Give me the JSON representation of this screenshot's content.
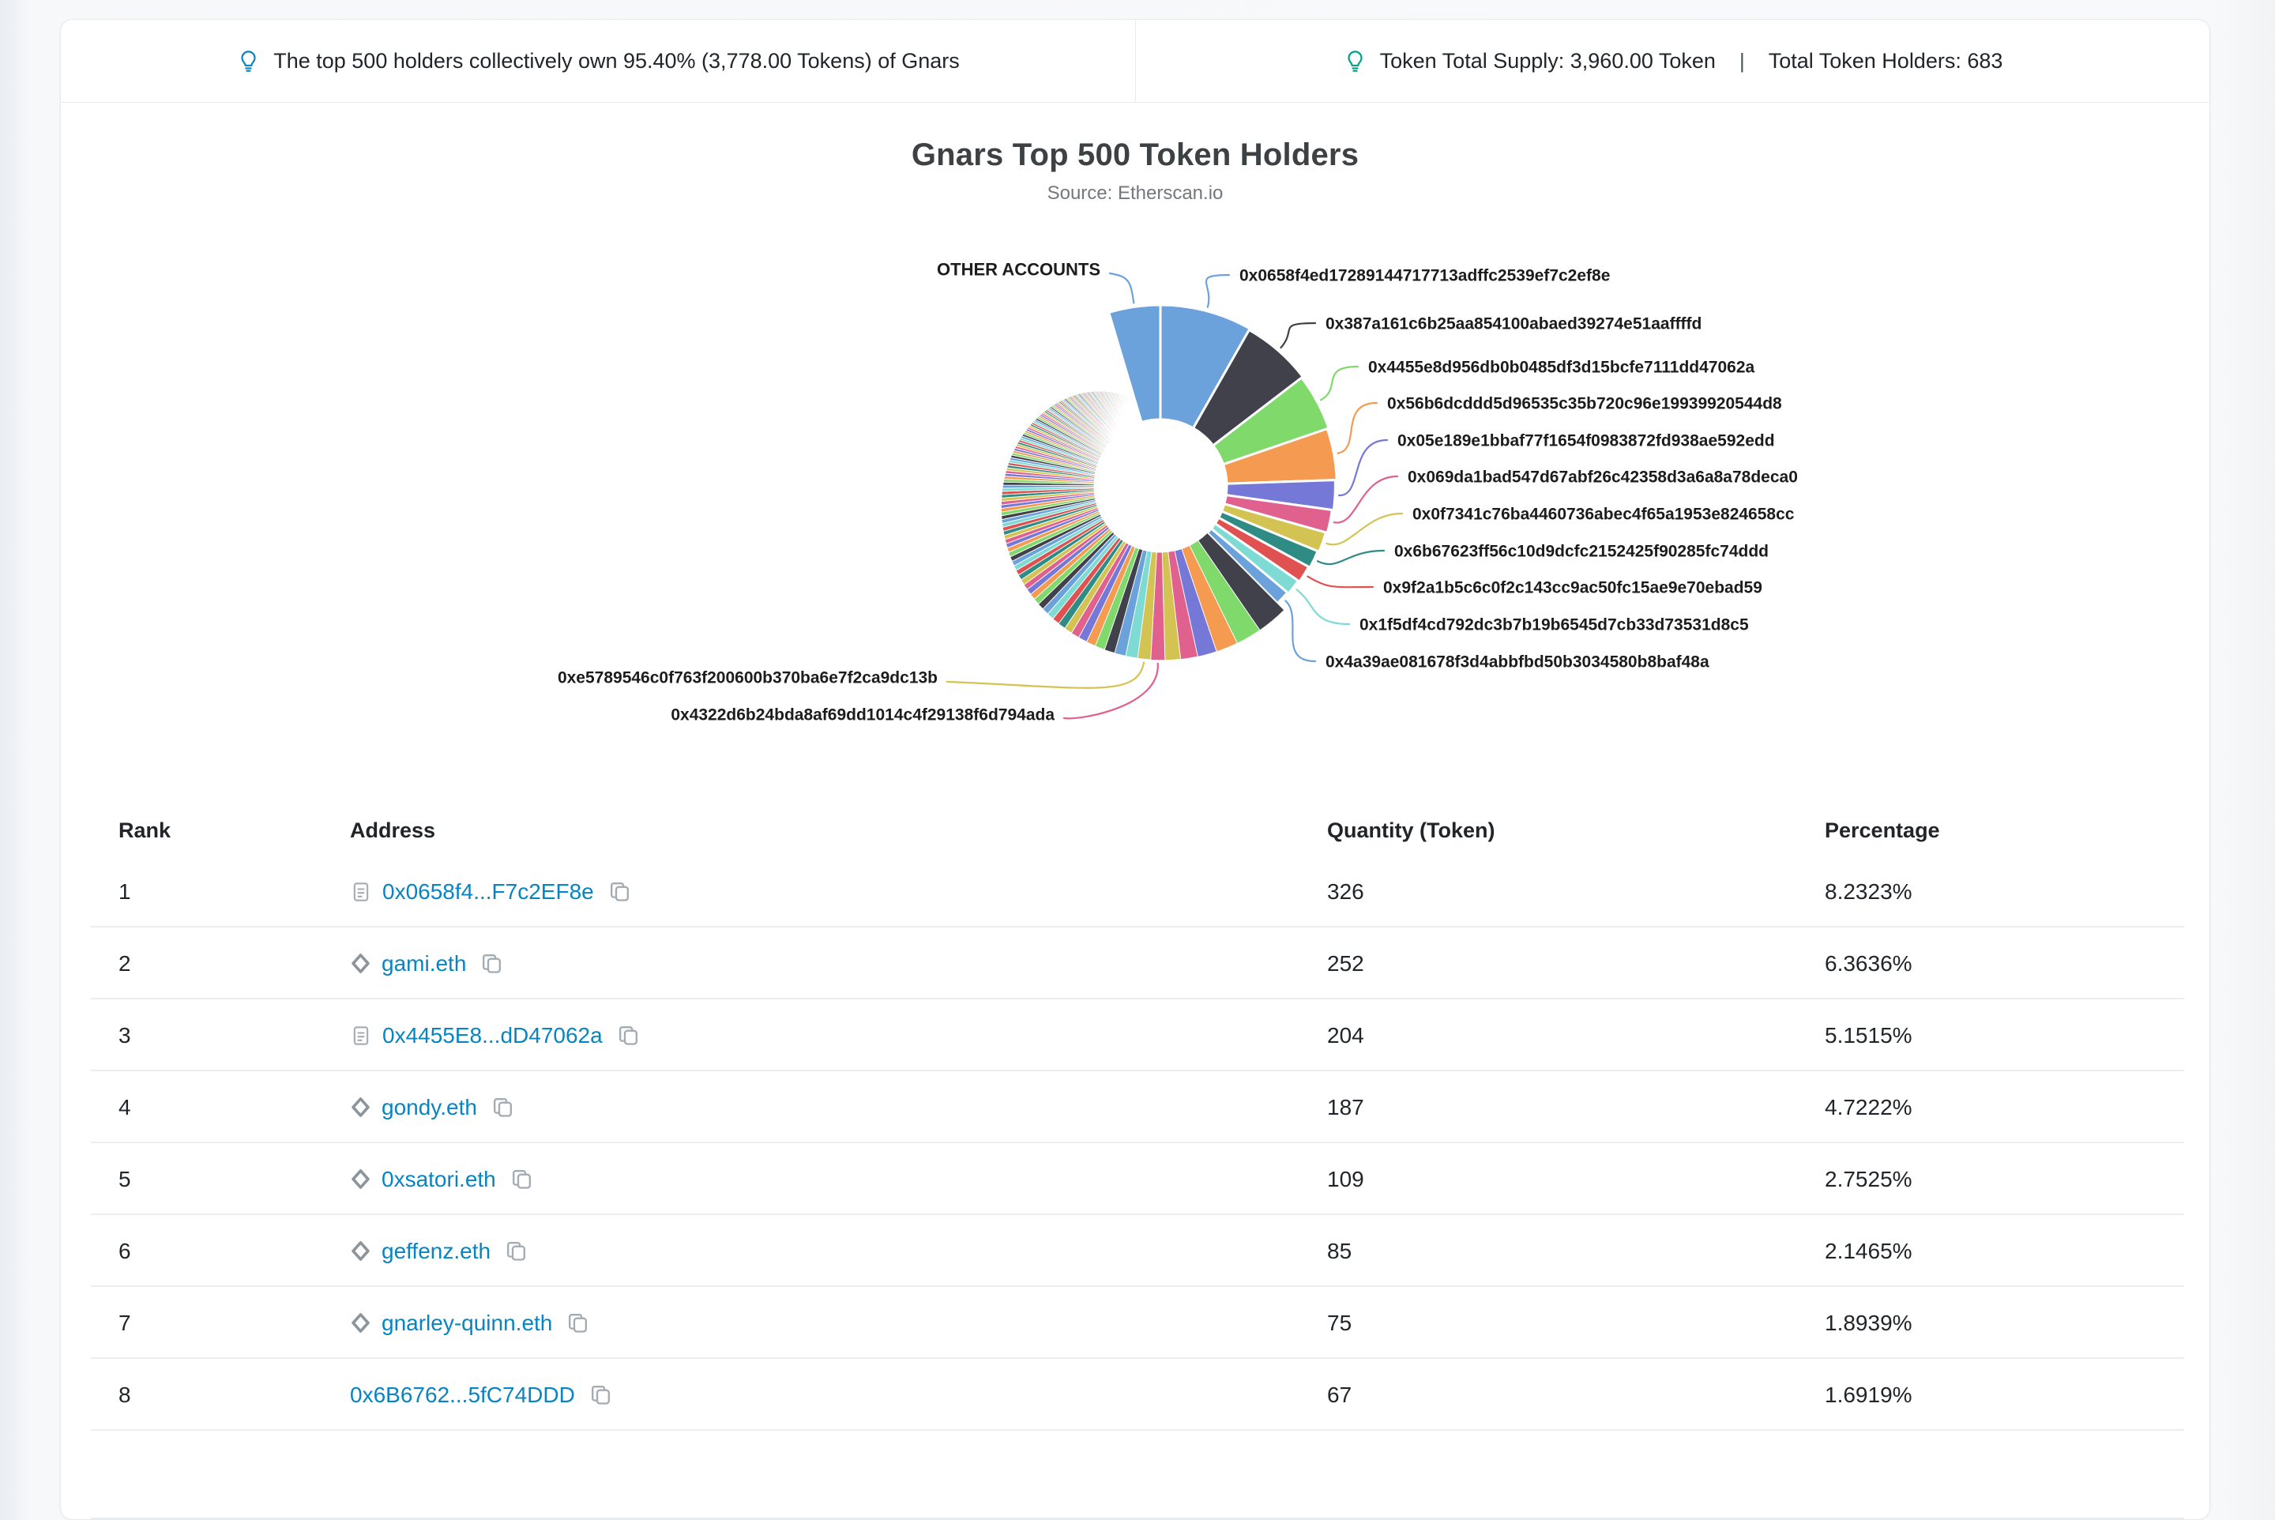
{
  "banner": {
    "left_text": "The top 500 holders collectively own 95.40% (3,778.00 Tokens) of Gnars",
    "right_supply_label": "Token Total Supply: 3,960.00 Token",
    "right_separator": "|",
    "right_holders_label": "Total Token Holders: 683"
  },
  "chart": {
    "title": "Gnars Top 500 Token Holders",
    "subtitle": "Source: Etherscan.io"
  },
  "chart_data": {
    "type": "pie",
    "title": "Gnars Top 500 Token Holders",
    "subtitle": "Source: Etherscan.io",
    "units": "percent of total token supply",
    "top_500_total_pct": 95.4,
    "top_500_total_tokens": "3,778.00",
    "total_supply_tokens": "3,960.00",
    "total_holders": 683,
    "other_accounts": {
      "label": "OTHER ACCOUNTS",
      "pct": 4.6
    },
    "labeled_slices": [
      {
        "address": "0x0658f4ed17289144717713adffc2539ef7c2ef8e",
        "pct": 8.2323
      },
      {
        "address": "0x387a161c6b25aa854100abaed39274e51aaffffd",
        "pct": 6.3636
      },
      {
        "address": "0x4455e8d956db0b0485df3d15bcfe7111dd47062a",
        "pct": 5.1515
      },
      {
        "address": "0x56b6dcddd5d96535c35b720c96e19939920544d8",
        "pct": 4.7222
      },
      {
        "address": "0x05e189e1bbaf77f1654f0983872fd938ae592edd",
        "pct": 2.7525
      },
      {
        "address": "0x069da1bad547d67abf26c42358d3a6a8a78deca0",
        "pct": 2.1465
      },
      {
        "address": "0x0f7341c76ba4460736abec4f65a1953e824658cc",
        "pct": 1.8939
      },
      {
        "address": "0x6b67623ff56c10d9dcfc2152425f90285fc74ddd",
        "pct": 1.6919
      },
      {
        "address": "0x9f2a1b5c6c0f2c143cc9ac50fc15ae9e70ebad59",
        "pct": 1.64,
        "estimated": true
      },
      {
        "address": "0x1f5df4cd792dc3b7b19b6545d7cb33d73531d8c5",
        "pct": 1.52,
        "estimated": true
      },
      {
        "address": "0x4a39ae081678f3d4abbfbd50b3034580b8baf48a",
        "pct": 1.41,
        "estimated": true
      },
      {
        "address": "0xe5789546c0f763f200600b370ba6e7f2ca9dc13b",
        "pct": 0.42,
        "estimated": true
      },
      {
        "address": "0x4322d6b24bda8af69dd1014c4f29138f6d794ada",
        "pct": 0.43,
        "estimated": true
      }
    ],
    "palette": [
      "#6ca2dc",
      "#41414b",
      "#7fd96b",
      "#f59b51",
      "#7678d8",
      "#e0608e",
      "#d3c352",
      "#2e8c85",
      "#e05252",
      "#7edbd4"
    ],
    "legend_position": "callout-labels",
    "grid": false
  },
  "table": {
    "headers": {
      "rank": "Rank",
      "address": "Address",
      "quantity": "Quantity (Token)",
      "percentage": "Percentage"
    },
    "rows": [
      {
        "rank": "1",
        "address": "0x0658f4...F7c2EF8e",
        "icon": "contract",
        "quantity": "326",
        "percentage": "8.2323%"
      },
      {
        "rank": "2",
        "address": "gami.eth",
        "icon": "ens",
        "quantity": "252",
        "percentage": "6.3636%"
      },
      {
        "rank": "3",
        "address": "0x4455E8...dD47062a",
        "icon": "contract",
        "quantity": "204",
        "percentage": "5.1515%"
      },
      {
        "rank": "4",
        "address": "gondy.eth",
        "icon": "ens",
        "quantity": "187",
        "percentage": "4.7222%"
      },
      {
        "rank": "5",
        "address": "0xsatori.eth",
        "icon": "ens",
        "quantity": "109",
        "percentage": "2.7525%"
      },
      {
        "rank": "6",
        "address": "geffenz.eth",
        "icon": "ens",
        "quantity": "85",
        "percentage": "2.1465%"
      },
      {
        "rank": "7",
        "address": "gnarley-quinn.eth",
        "icon": "ens",
        "quantity": "75",
        "percentage": "1.8939%"
      },
      {
        "rank": "8",
        "address": "0x6B6762...5fC74DDD",
        "icon": "none",
        "quantity": "67",
        "percentage": "1.6919%"
      }
    ]
  },
  "colors": {
    "link": "#0784c3",
    "bulb_left": "#0784c3",
    "bulb_right": "#00a186",
    "divider": "#e9ecef"
  }
}
